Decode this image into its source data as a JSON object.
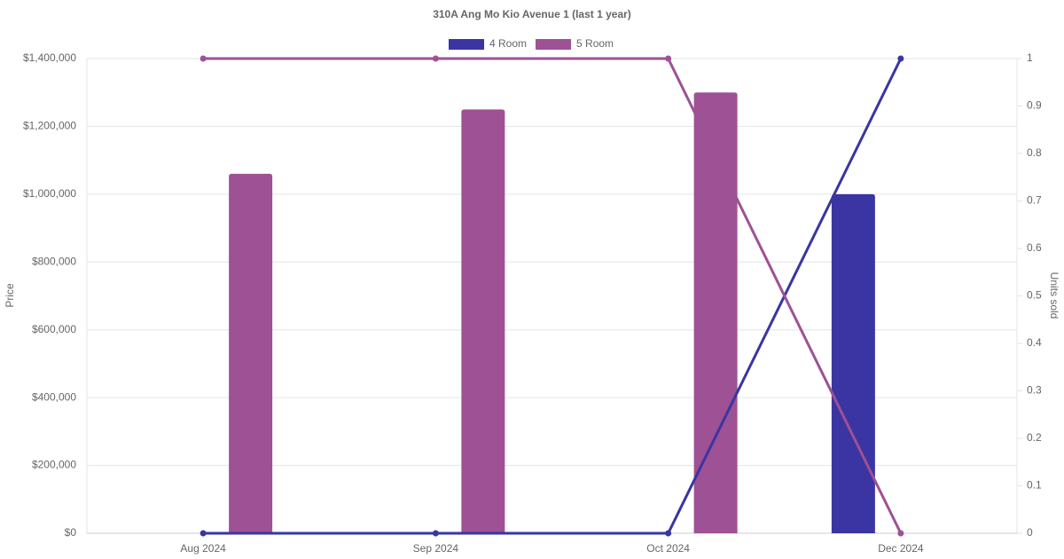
{
  "chart_data": {
    "type": "bar-line",
    "title": "310A Ang Mo Kio Avenue 1 (last 1 year)",
    "y_label": "Price",
    "y2_label": "Units sold",
    "categories": [
      "Aug 2024",
      "Sep 2024",
      "Oct 2024",
      "Dec 2024"
    ],
    "series": [
      {
        "name": "4 Room",
        "color": "#3a35a3",
        "values": [
          null,
          null,
          null,
          1000000
        ],
        "y2_values": [
          0,
          0,
          0,
          1
        ]
      },
      {
        "name": "5 Room",
        "color": "#9e5195",
        "values": [
          1060000,
          1250000,
          1300000,
          null
        ],
        "y2_values": [
          1,
          1,
          1,
          0
        ]
      }
    ],
    "ylim": [
      0,
      1400000
    ],
    "yticks": [
      {
        "value": 0,
        "label": "$0"
      },
      {
        "value": 200000,
        "label": "$200,000"
      },
      {
        "value": 400000,
        "label": "$400,000"
      },
      {
        "value": 600000,
        "label": "$600,000"
      },
      {
        "value": 800000,
        "label": "$800,000"
      },
      {
        "value": 1000000,
        "label": "$1,000,000"
      },
      {
        "value": 1200000,
        "label": "$1,200,000"
      },
      {
        "value": 1400000,
        "label": "$1,400,000"
      }
    ],
    "y2lim": [
      0,
      1
    ],
    "y2ticks": [
      0,
      0.1,
      0.2,
      0.3,
      0.4,
      0.5,
      0.6,
      0.7,
      0.8,
      0.9,
      1
    ],
    "grid": true,
    "legend": "top"
  }
}
